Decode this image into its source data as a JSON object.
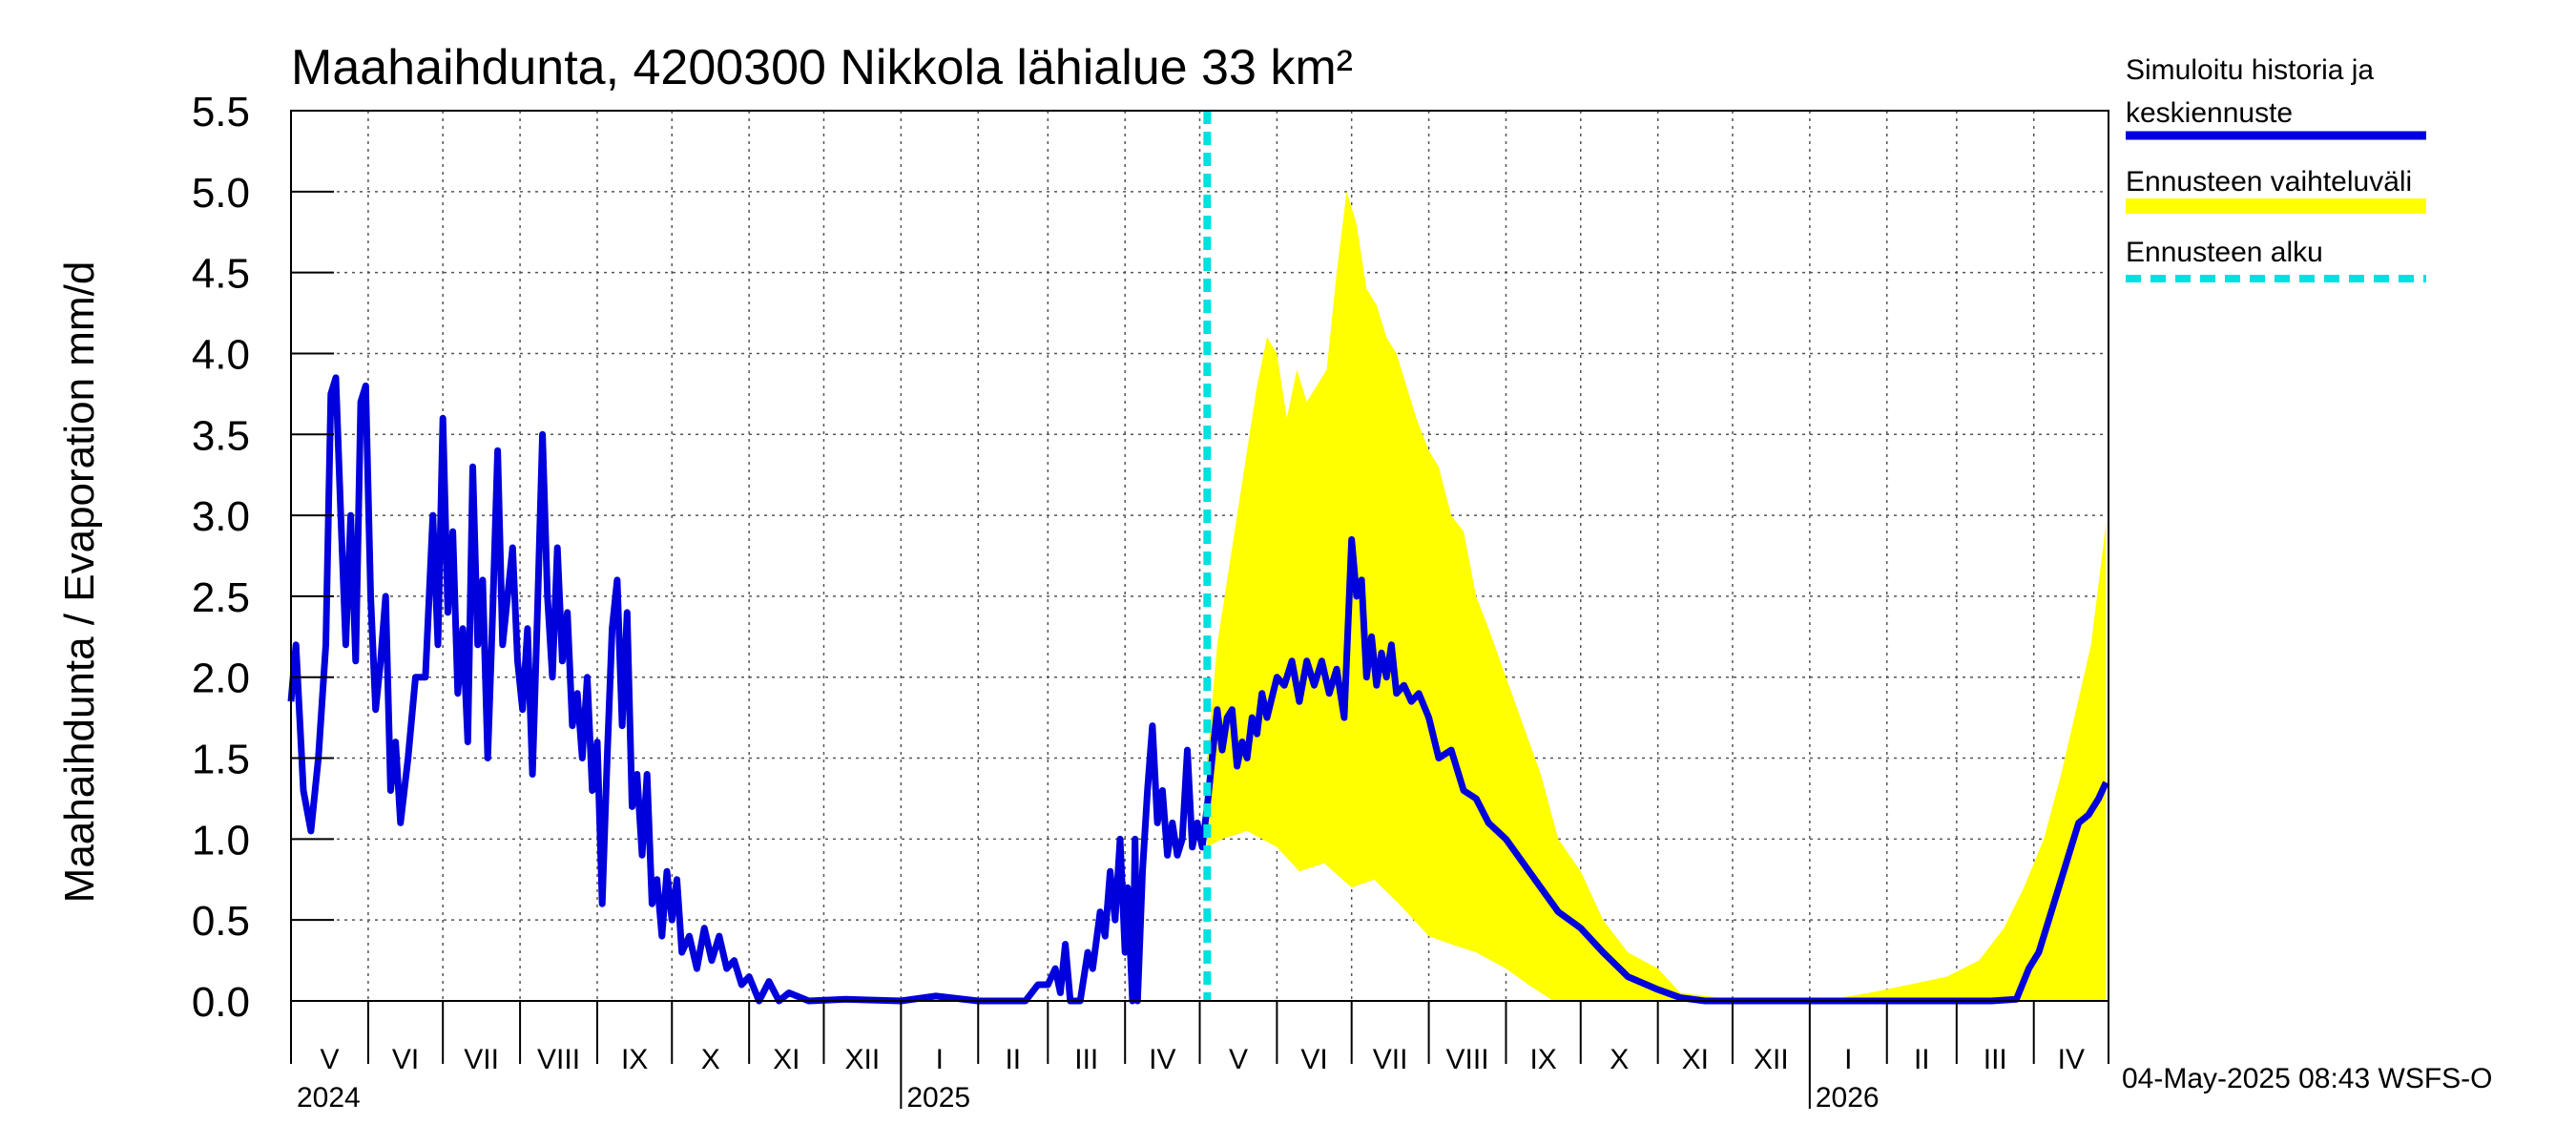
{
  "chart_data": {
    "type": "line",
    "title": "Maahaihdunta, 4200300 Nikkola lähialue 33 km²",
    "ylabel": "Maahaihdunta / Evaporation   mm/d",
    "ylim": [
      0,
      5.5
    ],
    "yticks": [
      "0.0",
      "0.5",
      "1.0",
      "1.5",
      "2.0",
      "2.5",
      "3.0",
      "3.5",
      "4.0",
      "4.5",
      "5.0",
      "5.5"
    ],
    "months": [
      "V",
      "VI",
      "VII",
      "VIII",
      "IX",
      "X",
      "XI",
      "XII",
      "I",
      "II",
      "III",
      "IV",
      "V",
      "VI",
      "VII",
      "VIII",
      "IX",
      "X",
      "XI",
      "XII",
      "I",
      "II",
      "III",
      "IV"
    ],
    "years": [
      "2024",
      "2025",
      "2026"
    ],
    "x_range": [
      "2024-05-01",
      "2026-05-01"
    ],
    "forecast_start": "2025-05-04",
    "grid": true,
    "legend_position": "right",
    "colors": {
      "history": "#0000dd",
      "range": "#ffff00",
      "forecast_start": "#00e0e0"
    },
    "series": [
      {
        "name": "Simuloitu historia ja keskiennuste",
        "points": [
          [
            "2024-05-01",
            1.85
          ],
          [
            "2024-05-03",
            2.2
          ],
          [
            "2024-05-06",
            1.3
          ],
          [
            "2024-05-09",
            1.05
          ],
          [
            "2024-05-12",
            1.5
          ],
          [
            "2024-05-15",
            2.2
          ],
          [
            "2024-05-17",
            3.75
          ],
          [
            "2024-05-19",
            3.85
          ],
          [
            "2024-05-21",
            3.0
          ],
          [
            "2024-05-23",
            2.2
          ],
          [
            "2024-05-25",
            3.0
          ],
          [
            "2024-05-27",
            2.1
          ],
          [
            "2024-05-29",
            3.7
          ],
          [
            "2024-05-31",
            3.8
          ],
          [
            "2024-06-02",
            2.5
          ],
          [
            "2024-06-04",
            1.8
          ],
          [
            "2024-06-06",
            2.1
          ],
          [
            "2024-06-08",
            2.5
          ],
          [
            "2024-06-10",
            1.3
          ],
          [
            "2024-06-12",
            1.6
          ],
          [
            "2024-06-14",
            1.1
          ],
          [
            "2024-06-17",
            1.5
          ],
          [
            "2024-06-20",
            2.0
          ],
          [
            "2024-06-24",
            2.0
          ],
          [
            "2024-06-27",
            3.0
          ],
          [
            "2024-06-29",
            2.2
          ],
          [
            "2024-07-01",
            3.6
          ],
          [
            "2024-07-03",
            2.4
          ],
          [
            "2024-07-05",
            2.9
          ],
          [
            "2024-07-07",
            1.9
          ],
          [
            "2024-07-09",
            2.3
          ],
          [
            "2024-07-11",
            1.6
          ],
          [
            "2024-07-13",
            3.3
          ],
          [
            "2024-07-15",
            2.2
          ],
          [
            "2024-07-17",
            2.6
          ],
          [
            "2024-07-19",
            1.5
          ],
          [
            "2024-07-21",
            2.4
          ],
          [
            "2024-07-23",
            3.4
          ],
          [
            "2024-07-25",
            2.2
          ],
          [
            "2024-07-27",
            2.5
          ],
          [
            "2024-07-29",
            2.8
          ],
          [
            "2024-07-31",
            2.1
          ],
          [
            "2024-08-02",
            1.8
          ],
          [
            "2024-08-04",
            2.3
          ],
          [
            "2024-08-06",
            1.4
          ],
          [
            "2024-08-08",
            2.4
          ],
          [
            "2024-08-10",
            3.5
          ],
          [
            "2024-08-12",
            2.5
          ],
          [
            "2024-08-14",
            2.0
          ],
          [
            "2024-08-16",
            2.8
          ],
          [
            "2024-08-18",
            2.1
          ],
          [
            "2024-08-20",
            2.4
          ],
          [
            "2024-08-22",
            1.7
          ],
          [
            "2024-08-24",
            1.9
          ],
          [
            "2024-08-26",
            1.5
          ],
          [
            "2024-08-28",
            2.0
          ],
          [
            "2024-08-30",
            1.3
          ],
          [
            "2024-09-01",
            1.6
          ],
          [
            "2024-09-03",
            0.6
          ],
          [
            "2024-09-05",
            1.5
          ],
          [
            "2024-09-07",
            2.3
          ],
          [
            "2024-09-09",
            2.6
          ],
          [
            "2024-09-11",
            1.7
          ],
          [
            "2024-09-13",
            2.4
          ],
          [
            "2024-09-15",
            1.2
          ],
          [
            "2024-09-17",
            1.4
          ],
          [
            "2024-09-19",
            0.9
          ],
          [
            "2024-09-21",
            1.4
          ],
          [
            "2024-09-23",
            0.6
          ],
          [
            "2024-09-25",
            0.75
          ],
          [
            "2024-09-27",
            0.4
          ],
          [
            "2024-09-29",
            0.8
          ],
          [
            "2024-10-01",
            0.5
          ],
          [
            "2024-10-03",
            0.75
          ],
          [
            "2024-10-05",
            0.3
          ],
          [
            "2024-10-08",
            0.4
          ],
          [
            "2024-10-11",
            0.2
          ],
          [
            "2024-10-14",
            0.45
          ],
          [
            "2024-10-17",
            0.25
          ],
          [
            "2024-10-20",
            0.4
          ],
          [
            "2024-10-23",
            0.2
          ],
          [
            "2024-10-26",
            0.25
          ],
          [
            "2024-10-29",
            0.1
          ],
          [
            "2024-11-01",
            0.15
          ],
          [
            "2024-11-05",
            0.0
          ],
          [
            "2024-11-09",
            0.12
          ],
          [
            "2024-11-13",
            0.0
          ],
          [
            "2024-11-17",
            0.05
          ],
          [
            "2024-11-25",
            0.0
          ],
          [
            "2024-12-10",
            0.01
          ],
          [
            "2025-01-01",
            0.0
          ],
          [
            "2025-01-15",
            0.03
          ],
          [
            "2025-02-01",
            0.0
          ],
          [
            "2025-02-20",
            0.0
          ],
          [
            "2025-02-25",
            0.1
          ],
          [
            "2025-03-01",
            0.1
          ],
          [
            "2025-03-04",
            0.2
          ],
          [
            "2025-03-06",
            0.05
          ],
          [
            "2025-03-08",
            0.35
          ],
          [
            "2025-03-10",
            0.0
          ],
          [
            "2025-03-14",
            0.0
          ],
          [
            "2025-03-17",
            0.3
          ],
          [
            "2025-03-19",
            0.2
          ],
          [
            "2025-03-22",
            0.55
          ],
          [
            "2025-03-24",
            0.4
          ],
          [
            "2025-03-26",
            0.8
          ],
          [
            "2025-03-28",
            0.5
          ],
          [
            "2025-03-30",
            1.0
          ],
          [
            "2025-04-01",
            0.3
          ],
          [
            "2025-04-02",
            0.7
          ],
          [
            "2025-04-04",
            0.0
          ],
          [
            "2025-04-05",
            1.0
          ],
          [
            "2025-04-06",
            0.0
          ],
          [
            "2025-04-08",
            0.8
          ],
          [
            "2025-04-10",
            1.3
          ],
          [
            "2025-04-12",
            1.7
          ],
          [
            "2025-04-14",
            1.1
          ],
          [
            "2025-04-16",
            1.3
          ],
          [
            "2025-04-18",
            0.9
          ],
          [
            "2025-04-20",
            1.1
          ],
          [
            "2025-04-22",
            0.9
          ],
          [
            "2025-04-24",
            1.0
          ],
          [
            "2025-04-26",
            1.55
          ],
          [
            "2025-04-28",
            0.95
          ],
          [
            "2025-04-30",
            1.1
          ],
          [
            "2025-05-02",
            0.95
          ],
          [
            "2025-05-04",
            1.2
          ],
          [
            "2025-05-06",
            1.5
          ],
          [
            "2025-05-08",
            1.8
          ],
          [
            "2025-05-10",
            1.55
          ],
          [
            "2025-05-12",
            1.75
          ],
          [
            "2025-05-14",
            1.8
          ],
          [
            "2025-05-16",
            1.45
          ],
          [
            "2025-05-18",
            1.6
          ],
          [
            "2025-05-20",
            1.5
          ],
          [
            "2025-05-22",
            1.75
          ],
          [
            "2025-05-24",
            1.65
          ],
          [
            "2025-05-26",
            1.9
          ],
          [
            "2025-05-28",
            1.75
          ],
          [
            "2025-06-01",
            2.0
          ],
          [
            "2025-06-04",
            1.95
          ],
          [
            "2025-06-07",
            2.1
          ],
          [
            "2025-06-10",
            1.85
          ],
          [
            "2025-06-13",
            2.1
          ],
          [
            "2025-06-16",
            1.95
          ],
          [
            "2025-06-19",
            2.1
          ],
          [
            "2025-06-22",
            1.9
          ],
          [
            "2025-06-25",
            2.05
          ],
          [
            "2025-06-28",
            1.75
          ],
          [
            "2025-07-01",
            2.85
          ],
          [
            "2025-07-03",
            2.5
          ],
          [
            "2025-07-05",
            2.6
          ],
          [
            "2025-07-07",
            2.0
          ],
          [
            "2025-07-09",
            2.25
          ],
          [
            "2025-07-11",
            1.95
          ],
          [
            "2025-07-13",
            2.15
          ],
          [
            "2025-07-15",
            2.0
          ],
          [
            "2025-07-17",
            2.2
          ],
          [
            "2025-07-19",
            1.9
          ],
          [
            "2025-07-22",
            1.95
          ],
          [
            "2025-07-25",
            1.85
          ],
          [
            "2025-07-28",
            1.9
          ],
          [
            "2025-08-01",
            1.75
          ],
          [
            "2025-08-05",
            1.5
          ],
          [
            "2025-08-10",
            1.55
          ],
          [
            "2025-08-15",
            1.3
          ],
          [
            "2025-08-20",
            1.25
          ],
          [
            "2025-08-25",
            1.1
          ],
          [
            "2025-09-01",
            1.0
          ],
          [
            "2025-09-08",
            0.85
          ],
          [
            "2025-09-15",
            0.7
          ],
          [
            "2025-09-22",
            0.55
          ],
          [
            "2025-10-01",
            0.45
          ],
          [
            "2025-10-10",
            0.3
          ],
          [
            "2025-10-20",
            0.15
          ],
          [
            "2025-11-01",
            0.07
          ],
          [
            "2025-11-10",
            0.02
          ],
          [
            "2025-11-20",
            0.0
          ],
          [
            "2026-02-01",
            0.0
          ],
          [
            "2026-03-15",
            0.0
          ],
          [
            "2026-03-25",
            0.01
          ],
          [
            "2026-03-30",
            0.2
          ],
          [
            "2026-04-03",
            0.3
          ],
          [
            "2026-04-07",
            0.5
          ],
          [
            "2026-04-11",
            0.7
          ],
          [
            "2026-04-15",
            0.9
          ],
          [
            "2026-04-19",
            1.1
          ],
          [
            "2026-04-23",
            1.15
          ],
          [
            "2026-04-27",
            1.25
          ],
          [
            "2026-04-30",
            1.35
          ]
        ]
      },
      {
        "name": "Ennusteen vaihteluväli",
        "points_upper": [
          [
            "2025-05-04",
            1.5
          ],
          [
            "2025-05-08",
            2.2
          ],
          [
            "2025-05-12",
            2.6
          ],
          [
            "2025-05-16",
            3.0
          ],
          [
            "2025-05-20",
            3.4
          ],
          [
            "2025-05-24",
            3.8
          ],
          [
            "2025-05-28",
            4.1
          ],
          [
            "2025-06-01",
            4.0
          ],
          [
            "2025-06-05",
            3.6
          ],
          [
            "2025-06-09",
            3.9
          ],
          [
            "2025-06-13",
            3.7
          ],
          [
            "2025-06-17",
            3.8
          ],
          [
            "2025-06-21",
            3.9
          ],
          [
            "2025-06-25",
            4.5
          ],
          [
            "2025-06-29",
            5.0
          ],
          [
            "2025-07-03",
            4.8
          ],
          [
            "2025-07-07",
            4.4
          ],
          [
            "2025-07-11",
            4.3
          ],
          [
            "2025-07-15",
            4.1
          ],
          [
            "2025-07-19",
            4.0
          ],
          [
            "2025-07-23",
            3.8
          ],
          [
            "2025-07-27",
            3.6
          ],
          [
            "2025-08-01",
            3.4
          ],
          [
            "2025-08-05",
            3.3
          ],
          [
            "2025-08-10",
            3.0
          ],
          [
            "2025-08-15",
            2.9
          ],
          [
            "2025-08-20",
            2.5
          ],
          [
            "2025-08-25",
            2.3
          ],
          [
            "2025-09-01",
            2.0
          ],
          [
            "2025-09-08",
            1.7
          ],
          [
            "2025-09-15",
            1.4
          ],
          [
            "2025-09-22",
            1.0
          ],
          [
            "2025-10-01",
            0.8
          ],
          [
            "2025-10-10",
            0.5
          ],
          [
            "2025-10-20",
            0.3
          ],
          [
            "2025-11-01",
            0.2
          ],
          [
            "2025-11-10",
            0.05
          ],
          [
            "2025-12-01",
            0.01
          ],
          [
            "2026-01-10",
            0.01
          ],
          [
            "2026-01-25",
            0.05
          ],
          [
            "2026-02-10",
            0.1
          ],
          [
            "2026-02-25",
            0.15
          ],
          [
            "2026-03-10",
            0.25
          ],
          [
            "2026-03-20",
            0.45
          ],
          [
            "2026-03-28",
            0.7
          ],
          [
            "2026-04-05",
            1.0
          ],
          [
            "2026-04-12",
            1.4
          ],
          [
            "2026-04-18",
            1.8
          ],
          [
            "2026-04-24",
            2.2
          ],
          [
            "2026-04-28",
            2.7
          ],
          [
            "2026-04-30",
            2.95
          ]
        ],
        "points_lower": [
          [
            "2025-05-04",
            0.95
          ],
          [
            "2025-05-10",
            1.0
          ],
          [
            "2025-05-20",
            1.05
          ],
          [
            "2025-06-01",
            0.95
          ],
          [
            "2025-06-10",
            0.8
          ],
          [
            "2025-06-20",
            0.85
          ],
          [
            "2025-07-01",
            0.7
          ],
          [
            "2025-07-10",
            0.75
          ],
          [
            "2025-07-20",
            0.6
          ],
          [
            "2025-08-01",
            0.4
          ],
          [
            "2025-08-10",
            0.35
          ],
          [
            "2025-08-20",
            0.3
          ],
          [
            "2025-09-01",
            0.2
          ],
          [
            "2025-09-10",
            0.1
          ],
          [
            "2025-09-20",
            0.0
          ],
          [
            "2026-04-30",
            0.0
          ]
        ]
      },
      {
        "name": "Ennusteen alku"
      }
    ]
  },
  "legend": {
    "history_line1": "Simuloitu historia ja",
    "history_line2": "keskiennuste",
    "range": "Ennusteen vaihteluväli",
    "forecast_start": "Ennusteen alku"
  },
  "footer": "04-May-2025 08:43 WSFS-O"
}
